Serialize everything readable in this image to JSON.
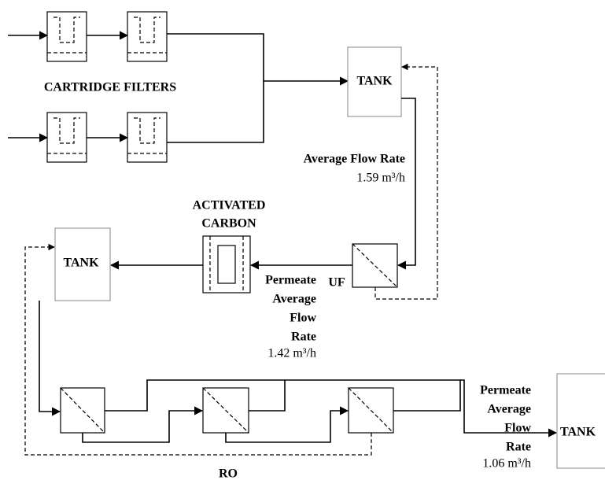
{
  "cartridge_filters": {
    "label": "CARTRIDGE FILTERS"
  },
  "tanks": [
    {
      "label": "TANK"
    },
    {
      "label": "TANK"
    },
    {
      "label": "TANK"
    }
  ],
  "feed_flow": {
    "lines": [
      "Average Flow Rate"
    ],
    "value": "1.59 m³/h"
  },
  "activated_carbon": {
    "lines": [
      "ACTIVATED",
      "CARBON"
    ]
  },
  "uf": {
    "label": "UF"
  },
  "uf_permeate_flow": {
    "lines": [
      "Permeate",
      "Average",
      "Flow",
      "Rate"
    ],
    "value": "1.42 m³/h"
  },
  "ro": {
    "label": "RO"
  },
  "ro_permeate_flow": {
    "lines": [
      "Permeate",
      "Average",
      "Flow",
      "Rate"
    ],
    "value": "1.06 m³/h"
  }
}
